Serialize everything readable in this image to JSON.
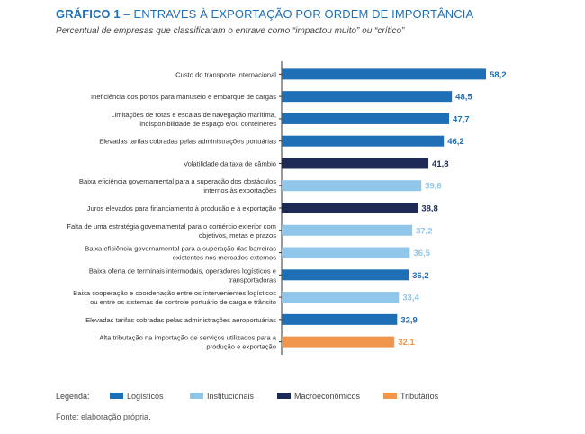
{
  "header": {
    "title_prefix": "GRÁFICO 1",
    "title_sep": " – ",
    "title_text": "ENTRAVES À EXPORTAÇÃO POR ORDEM DE IMPORTÂNCIA",
    "subtitle": "Percentual de empresas que classificaram o entrave como “impactou muito” ou “crítico”"
  },
  "colors": {
    "Logísticos": "#1e6fb5",
    "Institucionais": "#8fc6ea",
    "Macroeconômicos": "#1d2a55",
    "Tributários": "#f0964d",
    "title": "#1e6fb5",
    "axis": "#333333",
    "label_light": "#8fc6ea"
  },
  "chart_data": {
    "type": "bar",
    "orientation": "horizontal",
    "title": "ENTRAVES À EXPORTAÇÃO POR ORDEM DE IMPORTÂNCIA",
    "xlabel": "",
    "ylabel": "",
    "xlim": [
      0,
      60
    ],
    "grid": false,
    "categories": [
      [
        "Custo do transporte internacional"
      ],
      [
        "Ineficiência dos portos para manuseio e embarque de cargas"
      ],
      [
        "Limitações de rotas e escalas de navegação marítima,",
        "indisponibilidade de espaço e/ou contêineres"
      ],
      [
        "Elevadas tarifas cobradas pelas administrações portuárias"
      ],
      [
        "Volatilidade da taxa de câmbio"
      ],
      [
        "Baixa eficiência governamental para a superação dos obstáculos",
        "internos às exportações"
      ],
      [
        "Juros elevados para financiamento à produção e à exportação"
      ],
      [
        "Falta de uma estratégia governamental para o comércio exterior com",
        "objetivos, metas e prazos"
      ],
      [
        "Baixa eficiência governamental para a superação das barreiras",
        "existentes nos mercados externos"
      ],
      [
        "Baixa oferta de terminais intermodais, operadores logísticos e",
        "transportadoras"
      ],
      [
        "Baixa cooperação e coordenação entre os intervenientes logísticos",
        "ou entre os sistemas de controle portuário de carga e trânsito"
      ],
      [
        "Elevadas tarifas cobradas pelas administrações aeroportuárias"
      ],
      [
        "Alta tributação na importação de serviços utilizados para a",
        "produção e exportação"
      ]
    ],
    "values": [
      58.2,
      48.5,
      47.7,
      46.2,
      41.8,
      39.8,
      38.8,
      37.2,
      36.5,
      36.2,
      33.4,
      32.9,
      32.1
    ],
    "value_labels": [
      "58,2",
      "48,5",
      "47,7",
      "46,2",
      "41,8",
      "39,8",
      "38,8",
      "37,2",
      "36,5",
      "36,2",
      "33,4",
      "32,9",
      "32,1"
    ],
    "groups": [
      "Logísticos",
      "Logísticos",
      "Logísticos",
      "Logísticos",
      "Macroeconômicos",
      "Institucionais",
      "Macroeconômicos",
      "Institucionais",
      "Institucionais",
      "Logísticos",
      "Institucionais",
      "Logísticos",
      "Tributários"
    ],
    "legend_title": "Legenda:",
    "legend": [
      "Logísticos",
      "Institucionais",
      "Macroeconômicos",
      "Tributários"
    ],
    "legend_position": "bottom-left"
  },
  "footer": {
    "source": "Fonte: elaboração própria."
  }
}
